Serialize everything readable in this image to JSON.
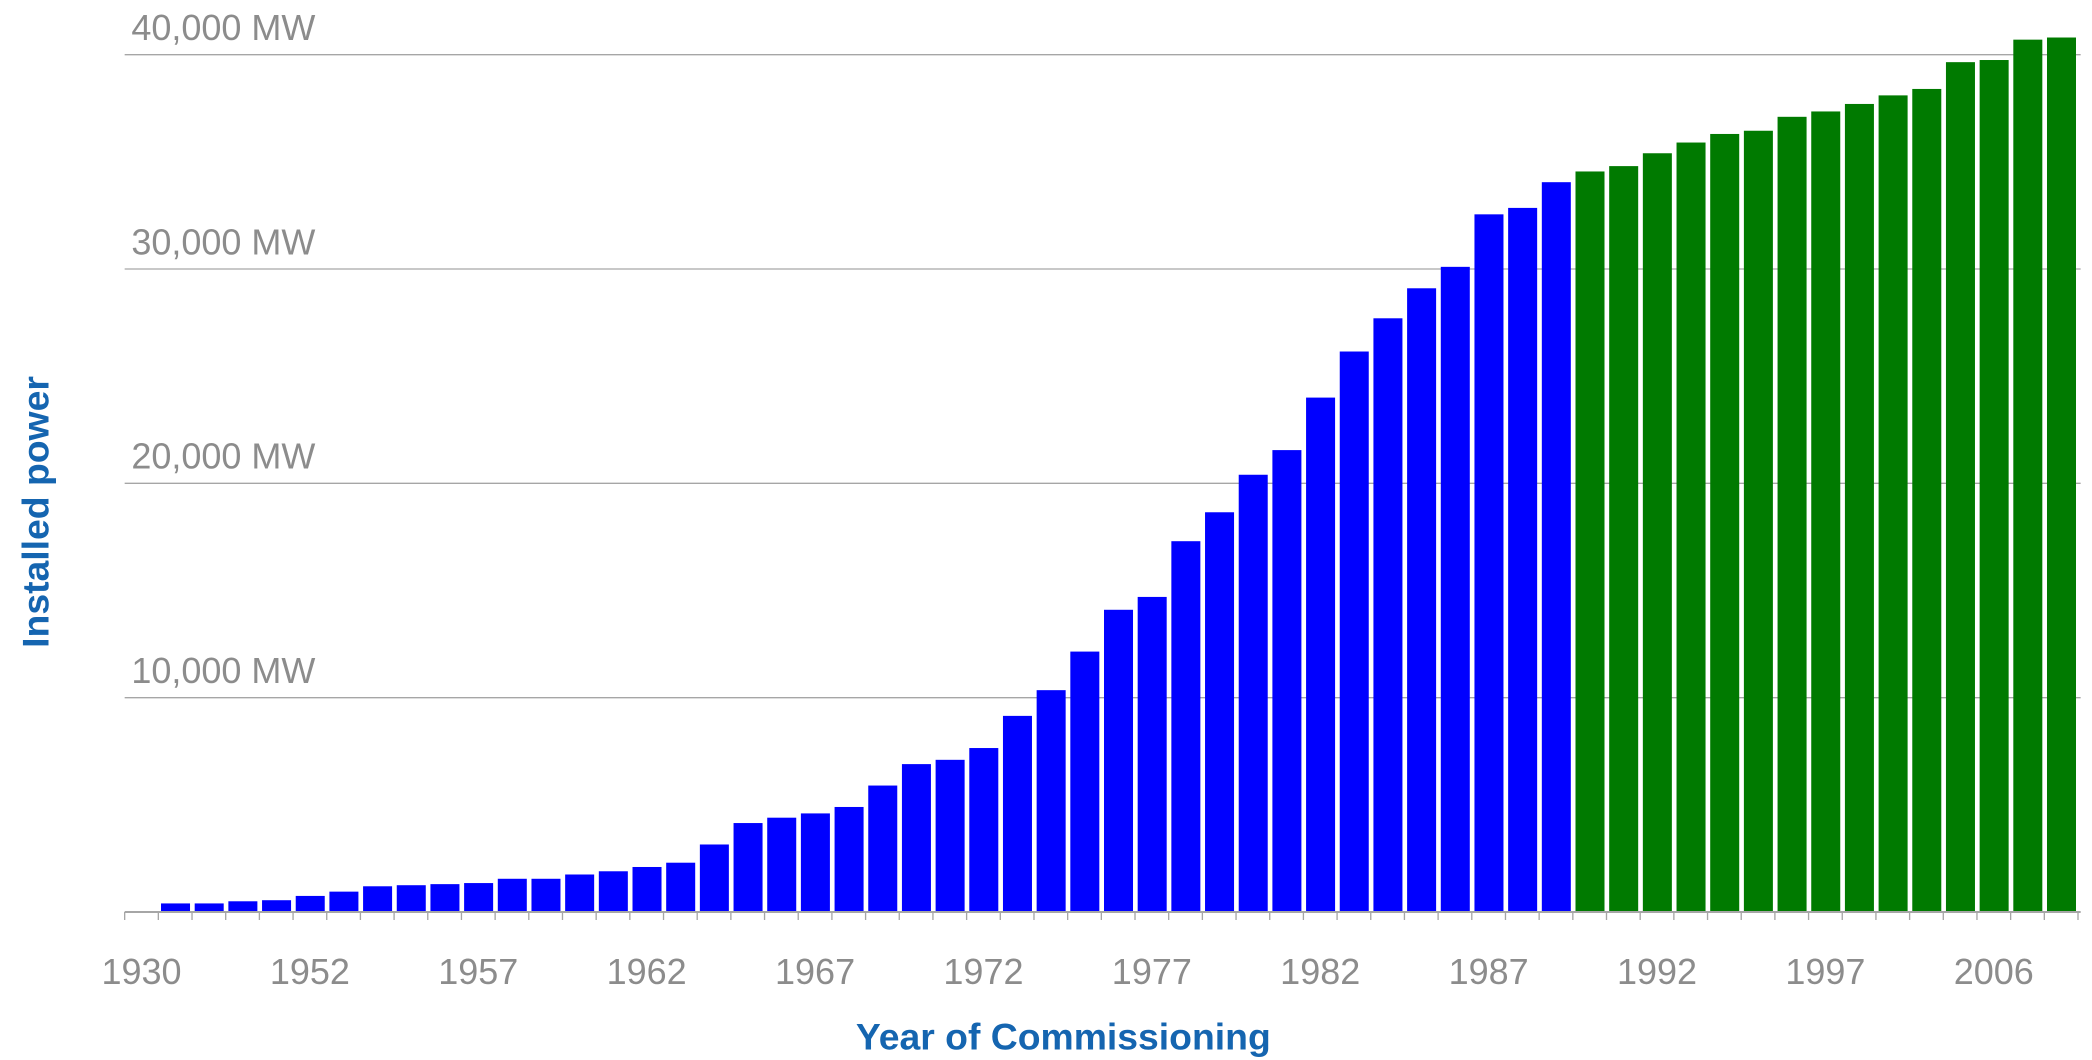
{
  "chart_data": {
    "type": "bar",
    "x_label": "Year of Commissioning",
    "y_label": "Installed power",
    "categories": [
      "1930",
      null,
      null,
      null,
      null,
      "1952",
      null,
      null,
      null,
      null,
      "1957",
      null,
      null,
      null,
      null,
      "1962",
      null,
      null,
      null,
      null,
      "1967",
      null,
      null,
      null,
      null,
      "1972",
      null,
      null,
      null,
      null,
      "1977",
      null,
      null,
      null,
      null,
      "1982",
      null,
      null,
      null,
      null,
      "1987",
      null,
      null,
      null,
      null,
      "1992",
      null,
      null,
      null,
      null,
      "1997",
      null,
      null,
      null,
      null,
      "2006",
      null,
      null
    ],
    "values": [
      0,
      400,
      400,
      500,
      550,
      750,
      950,
      1200,
      1250,
      1300,
      1350,
      1550,
      1550,
      1750,
      1900,
      2100,
      2300,
      3150,
      4150,
      4400,
      4600,
      4900,
      5900,
      6900,
      7100,
      7650,
      9150,
      10350,
      12150,
      14100,
      14700,
      17300,
      18650,
      20400,
      21550,
      24000,
      26150,
      27700,
      29100,
      30100,
      32550,
      32850,
      34050,
      34550,
      34800,
      35400,
      35900,
      36300,
      36450,
      37100,
      37350,
      37700,
      38100,
      38400,
      39650,
      39750,
      40700,
      40800
    ],
    "colors": [
      "#0000ff",
      "#0000ff",
      "#0000ff",
      "#0000ff",
      "#0000ff",
      "#0000ff",
      "#0000ff",
      "#0000ff",
      "#0000ff",
      "#0000ff",
      "#0000ff",
      "#0000ff",
      "#0000ff",
      "#0000ff",
      "#0000ff",
      "#0000ff",
      "#0000ff",
      "#0000ff",
      "#0000ff",
      "#0000ff",
      "#0000ff",
      "#0000ff",
      "#0000ff",
      "#0000ff",
      "#0000ff",
      "#0000ff",
      "#0000ff",
      "#0000ff",
      "#0000ff",
      "#0000ff",
      "#0000ff",
      "#0000ff",
      "#0000ff",
      "#0000ff",
      "#0000ff",
      "#0000ff",
      "#0000ff",
      "#0000ff",
      "#0000ff",
      "#0000ff",
      "#0000ff",
      "#0000ff",
      "#0000ff",
      "#007a00",
      "#007a00",
      "#007a00",
      "#007a00",
      "#007a00",
      "#007a00",
      "#007a00",
      "#007a00",
      "#007a00",
      "#007a00",
      "#007a00",
      "#007a00",
      "#007a00",
      "#007a00",
      "#007a00"
    ],
    "ylim": [
      0,
      42550
    ],
    "yticks": [
      {
        "value": 10000,
        "label": "10,000 MW"
      },
      {
        "value": 20000,
        "label": "20,000 MW"
      },
      {
        "value": 30000,
        "label": "30,000 MW"
      },
      {
        "value": 40000,
        "label": "40,000 MW"
      }
    ],
    "grid": true
  }
}
